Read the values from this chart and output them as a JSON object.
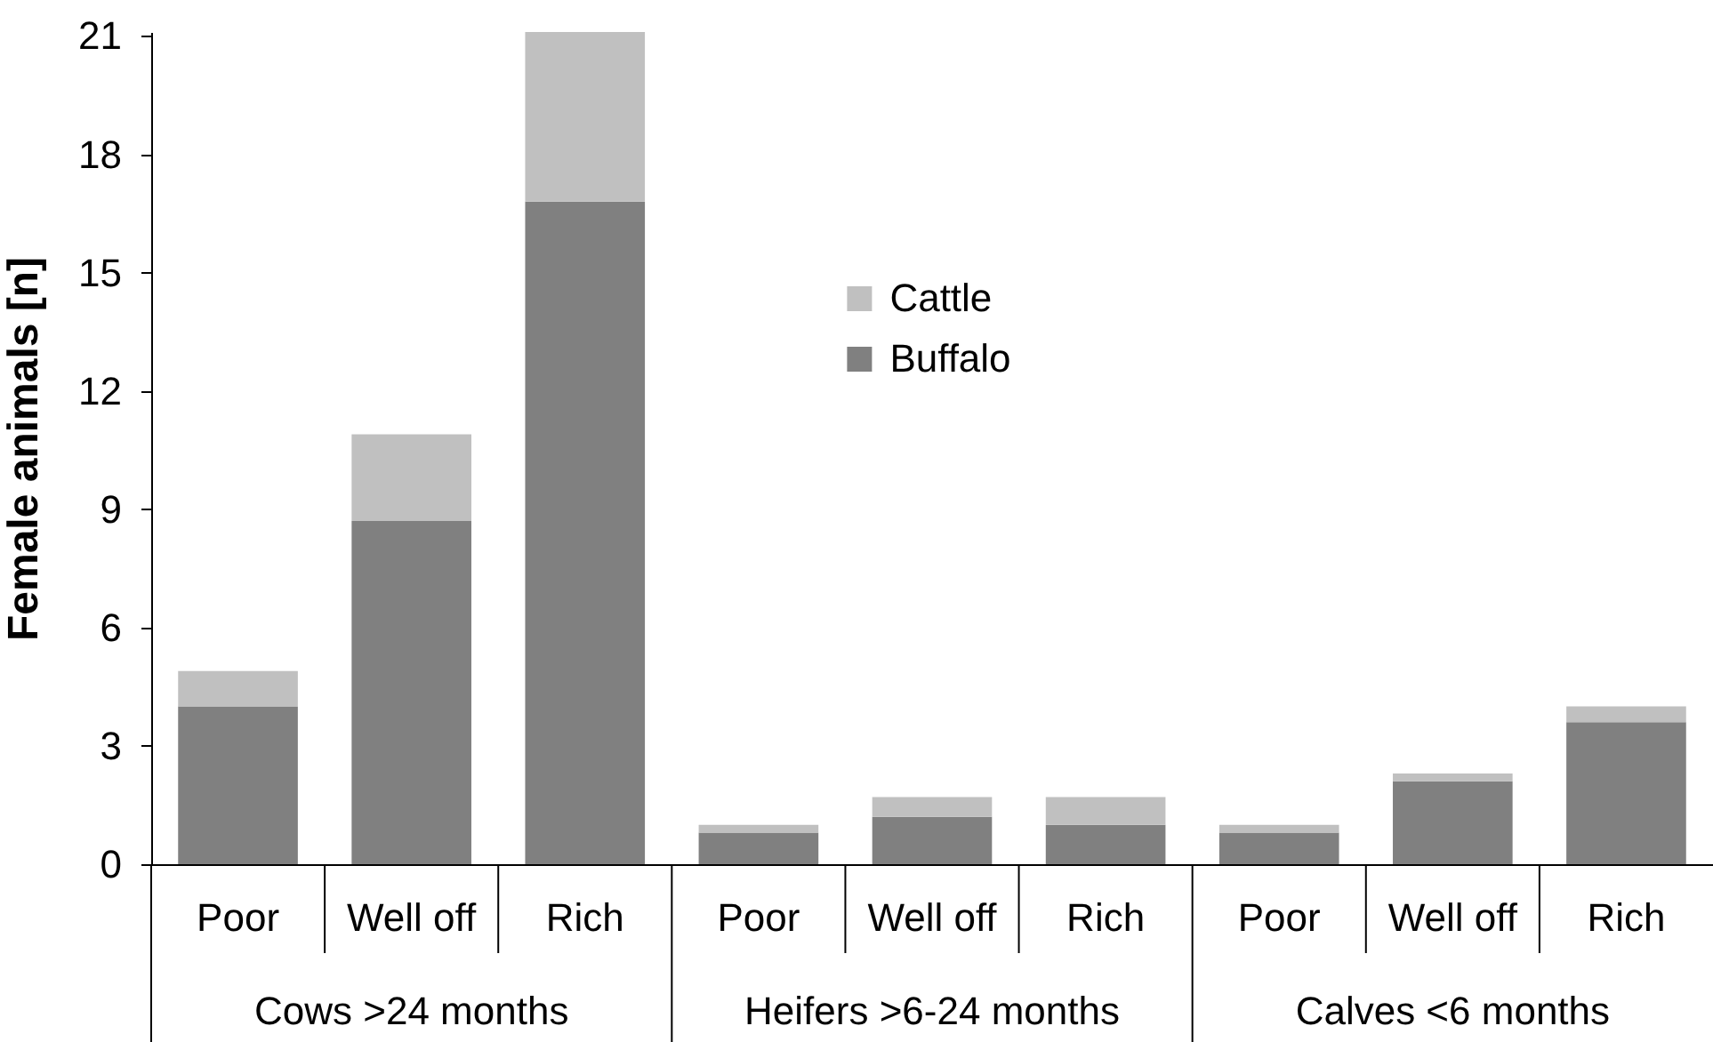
{
  "chart_data": {
    "type": "bar",
    "stacked": true,
    "ylabel": "Female animals [n]",
    "categories": [
      "Poor",
      "Well off",
      "Rich",
      "Poor",
      "Well off",
      "Rich",
      "Poor",
      "Well off",
      "Rich"
    ],
    "series": [
      {
        "name": "Buffalo",
        "color": "#808080",
        "values": [
          4.0,
          8.7,
          16.8,
          0.8,
          1.2,
          1.0,
          0.8,
          2.1,
          3.6
        ]
      },
      {
        "name": "Cattle",
        "color": "#c0c0c0",
        "values": [
          0.9,
          2.2,
          4.3,
          0.2,
          0.5,
          0.7,
          0.2,
          0.2,
          0.4
        ]
      }
    ],
    "ylim": [
      0,
      21.1
    ],
    "yticks": [
      0,
      3,
      6,
      9,
      12,
      15,
      18,
      21
    ],
    "legend": "top",
    "annotations": [
      "Cows >24 months",
      "Heifers >6-24 months",
      "Calves <6 months"
    ]
  }
}
